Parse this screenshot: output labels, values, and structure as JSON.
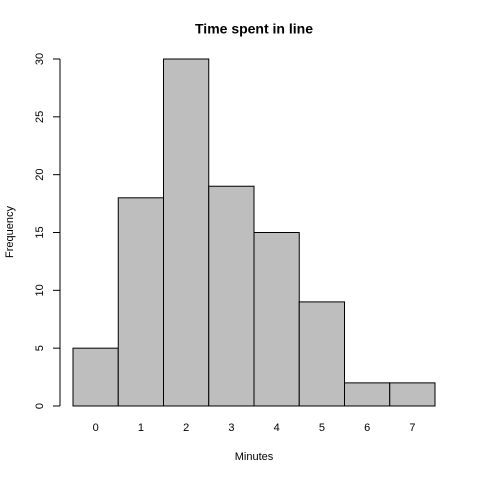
{
  "chart_data": {
    "type": "bar",
    "title": "Time spent in line",
    "x_label": "Minutes",
    "y_label": "Frequency",
    "categories": [
      "0",
      "1",
      "2",
      "3",
      "4",
      "5",
      "6",
      "7"
    ],
    "values": [
      5,
      18,
      30,
      19,
      15,
      9,
      2,
      2
    ],
    "color": "#bebebe",
    "ylim": [
      0,
      30
    ],
    "yticks": [
      0,
      5,
      10,
      15,
      20,
      25,
      30
    ],
    "grid": false
  }
}
